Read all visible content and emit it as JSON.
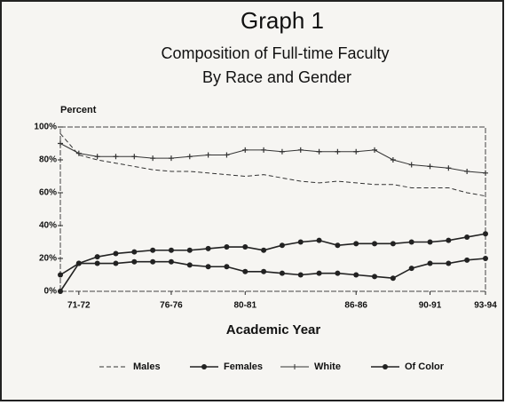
{
  "chart_data": {
    "type": "line",
    "title": "Graph 1",
    "subtitle": [
      "Composition of Full-time Faculty",
      "By Race and Gender"
    ],
    "y_label": "Percent",
    "x_label": "Academic Year",
    "categories": [
      null,
      "71-72",
      null,
      null,
      null,
      null,
      "76-76",
      null,
      null,
      null,
      "80-81",
      null,
      null,
      null,
      null,
      null,
      "86-86",
      null,
      null,
      null,
      "90-91",
      null,
      null,
      "93-94"
    ],
    "ylim": [
      0,
      100
    ],
    "yticks": [
      {
        "value": 0,
        "label": "0%"
      },
      {
        "value": 20,
        "label": "20%"
      },
      {
        "value": 40,
        "label": "40%"
      },
      {
        "value": 60,
        "label": "60%"
      },
      {
        "value": 80,
        "label": "80%"
      },
      {
        "value": 100,
        "label": "100%"
      }
    ],
    "grid": false,
    "series": [
      {
        "name": "Males",
        "color": "#333",
        "style": "dashed",
        "values": [
          96,
          83,
          80,
          78,
          76,
          74,
          73,
          73,
          72,
          71,
          70,
          71,
          69,
          67,
          66,
          67,
          66,
          65,
          65,
          63,
          63,
          63,
          60,
          58
        ]
      },
      {
        "name": "Females",
        "color": "#222",
        "style": "circle",
        "values": [
          0,
          17,
          21,
          23,
          24,
          25,
          25,
          25,
          26,
          27,
          27,
          25,
          28,
          30,
          31,
          28,
          29,
          29,
          29,
          30,
          30,
          31,
          33,
          35
        ]
      },
      {
        "name": "White",
        "color": "#333",
        "style": "plus",
        "values": [
          90,
          84,
          82,
          82,
          82,
          81,
          81,
          82,
          83,
          83,
          86,
          86,
          85,
          86,
          85,
          85,
          85,
          86,
          80,
          77,
          76,
          75,
          73,
          72
        ]
      },
      {
        "name": "Of Color",
        "color": "#222",
        "style": "circle",
        "values": [
          10,
          17,
          17,
          17,
          18,
          18,
          18,
          16,
          15,
          15,
          12,
          12,
          11,
          10,
          11,
          11,
          10,
          9,
          8,
          14,
          17,
          17,
          19,
          20
        ]
      }
    ]
  }
}
